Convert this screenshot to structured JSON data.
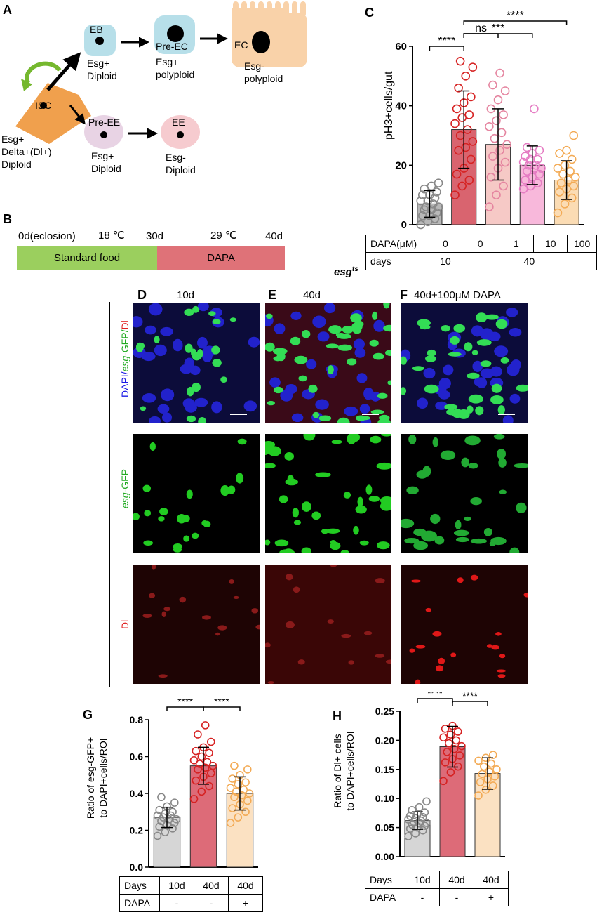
{
  "panel_letters": {
    "A": "A",
    "B": "B",
    "C": "C",
    "D": "D",
    "E": "E",
    "F": "F",
    "G": "G",
    "H": "H"
  },
  "diagram_A": {
    "isc": "ISC",
    "isc_desc": [
      "Esg+",
      "Delta+(Dl+)",
      "Diploid"
    ],
    "eb": "EB",
    "eb_desc": [
      "Esg+",
      "Diploid"
    ],
    "pre_ec": "Pre-EC",
    "pre_ec_desc": [
      "Esg+",
      "polyploid"
    ],
    "ec": "EC",
    "ec_desc": [
      "Esg-",
      "polyploid"
    ],
    "pre_ee": "Pre-EE",
    "pre_ee_desc": [
      "Esg+",
      "Diploid"
    ],
    "ee": "EE",
    "ee_desc": [
      "Esg-",
      "Diploid"
    ]
  },
  "timeline_B": {
    "start": "0d(eclosion)",
    "temp1": "18 ℃",
    "mid": "30d",
    "temp2": "29 ℃",
    "end": "40d",
    "seg1": "Standard food",
    "seg2": "DAPA"
  },
  "images": {
    "genotype": "esg",
    "genotype_sup": "ts",
    "col_D": "10d",
    "col_E": "40d",
    "col_F": "40d+100μM DAPA",
    "row1_label": [
      "DAPI/",
      "esg",
      "-GFP/",
      "Dl"
    ],
    "row2_label": [
      "esg",
      "-GFP"
    ],
    "row3_label": "Dl"
  },
  "chart_data": [
    {
      "panel": "C",
      "type": "bar",
      "categories": [
        "0/10",
        "0/40",
        "1/40",
        "10/40",
        "100/40"
      ],
      "values": [
        7,
        32,
        27,
        20,
        15
      ],
      "error": [
        4.5,
        13,
        12,
        6.5,
        6.5
      ],
      "points": [
        [
          0,
          1,
          2,
          3,
          3,
          4,
          5,
          5,
          6,
          6,
          7,
          8,
          8,
          9,
          10,
          10,
          11,
          12,
          13,
          14
        ],
        [
          10,
          13,
          15,
          17,
          19,
          22,
          25,
          26,
          28,
          30,
          32,
          34,
          36,
          37,
          39,
          41,
          43,
          46,
          50,
          53,
          55
        ],
        [
          6,
          10,
          13,
          16,
          19,
          21,
          23,
          25,
          27,
          29,
          31,
          33,
          35,
          37,
          39,
          42,
          45,
          47,
          51
        ],
        [
          12,
          13,
          14,
          15,
          16,
          17,
          18,
          19,
          19,
          20,
          20,
          21,
          22,
          22,
          23,
          24,
          25,
          26,
          39
        ],
        [
          4,
          7,
          9,
          11,
          12,
          13,
          14,
          15,
          16,
          17,
          18,
          19,
          20,
          22,
          24,
          25,
          30
        ]
      ],
      "colors": [
        "#b8b8b8",
        "#d9646f",
        "#f6c9c6",
        "#f8b8db",
        "#fbdcb4"
      ],
      "point_colors": [
        "#888888",
        "#d62222",
        "#e585a0",
        "#e57cc3",
        "#f3ab56"
      ],
      "ylabel": "pH3+cells/gut",
      "ylim": [
        0,
        60
      ],
      "yticks": [
        0,
        20,
        40,
        60
      ],
      "sig": [
        {
          "from": 0,
          "to": 1,
          "label": "****"
        },
        {
          "from": 1,
          "to": 2,
          "label": "ns"
        },
        {
          "from": 1,
          "to": 3,
          "label": "***"
        },
        {
          "from": 1,
          "to": 4,
          "label": "****"
        }
      ],
      "table": {
        "row1_label": "DAPA(μM)",
        "row1": [
          "0",
          "0",
          "1",
          "10",
          "100"
        ],
        "row2_label": "days",
        "row2_a": "10",
        "row2_b": "40"
      }
    },
    {
      "panel": "G",
      "type": "bar",
      "categories": [
        "10d",
        "40d",
        "40d"
      ],
      "values": [
        0.27,
        0.55,
        0.4
      ],
      "error": [
        0.055,
        0.1,
        0.09
      ],
      "points": [
        [
          0.17,
          0.19,
          0.21,
          0.22,
          0.23,
          0.24,
          0.25,
          0.26,
          0.26,
          0.27,
          0.28,
          0.28,
          0.29,
          0.3,
          0.31,
          0.33,
          0.35,
          0.38
        ],
        [
          0.37,
          0.41,
          0.44,
          0.47,
          0.49,
          0.51,
          0.53,
          0.54,
          0.55,
          0.56,
          0.57,
          0.58,
          0.6,
          0.62,
          0.63,
          0.65,
          0.68,
          0.72,
          0.77
        ],
        [
          0.24,
          0.27,
          0.3,
          0.32,
          0.34,
          0.36,
          0.38,
          0.39,
          0.4,
          0.41,
          0.42,
          0.43,
          0.45,
          0.46,
          0.48,
          0.5,
          0.53,
          0.55
        ]
      ],
      "colors": [
        "#d6d6d6",
        "#dd6b78",
        "#fbe1c2"
      ],
      "point_colors": [
        "#888888",
        "#d62222",
        "#f3ab56"
      ],
      "ylabel_lines": [
        "Ratio of esg-GFP+",
        "to DAPI+cells/ROI"
      ],
      "ylim": [
        0,
        0.8
      ],
      "yticks": [
        0,
        0.2,
        0.4,
        0.6,
        0.8
      ],
      "sig": [
        {
          "from": 0,
          "to": 1,
          "label": "****"
        },
        {
          "from": 1,
          "to": 2,
          "label": "****"
        }
      ],
      "table": {
        "row1_label": "Days",
        "row1": [
          "10d",
          "40d",
          "40d"
        ],
        "row2_label": "DAPA",
        "row2": [
          "-",
          "-",
          "+"
        ]
      }
    },
    {
      "panel": "H",
      "type": "bar",
      "categories": [
        "10d",
        "40d",
        "40d"
      ],
      "values": [
        0.062,
        0.189,
        0.143
      ],
      "error": [
        0.015,
        0.035,
        0.027
      ],
      "points": [
        [
          0.035,
          0.04,
          0.045,
          0.048,
          0.05,
          0.053,
          0.055,
          0.057,
          0.058,
          0.06,
          0.062,
          0.064,
          0.066,
          0.068,
          0.07,
          0.073,
          0.076,
          0.08,
          0.085,
          0.095
        ],
        [
          0.13,
          0.145,
          0.155,
          0.162,
          0.168,
          0.174,
          0.18,
          0.185,
          0.19,
          0.195,
          0.2,
          0.205,
          0.21,
          0.215,
          0.22,
          0.225
        ],
        [
          0.105,
          0.115,
          0.122,
          0.128,
          0.133,
          0.138,
          0.142,
          0.146,
          0.15,
          0.155,
          0.16,
          0.165,
          0.17,
          0.175
        ]
      ],
      "colors": [
        "#d6d6d6",
        "#dd6b78",
        "#fbe1c2"
      ],
      "point_colors": [
        "#888888",
        "#d62222",
        "#f3ab56"
      ],
      "ylabel_lines": [
        "Ratio of  Dl+ cells",
        "to DAPI+cells/ROI"
      ],
      "ylim": [
        0,
        0.25
      ],
      "yticks": [
        0,
        0.05,
        0.1,
        0.15,
        0.2,
        0.25
      ],
      "sig": [
        {
          "from": 0,
          "to": 1,
          "label": "****"
        },
        {
          "from": 1,
          "to": 2,
          "label": "****"
        }
      ],
      "table": {
        "row1_label": "Days",
        "row1": [
          "10d",
          "40d",
          "40d"
        ],
        "row2_label": "DAPA",
        "row2": [
          "-",
          "-",
          "+"
        ]
      }
    }
  ]
}
